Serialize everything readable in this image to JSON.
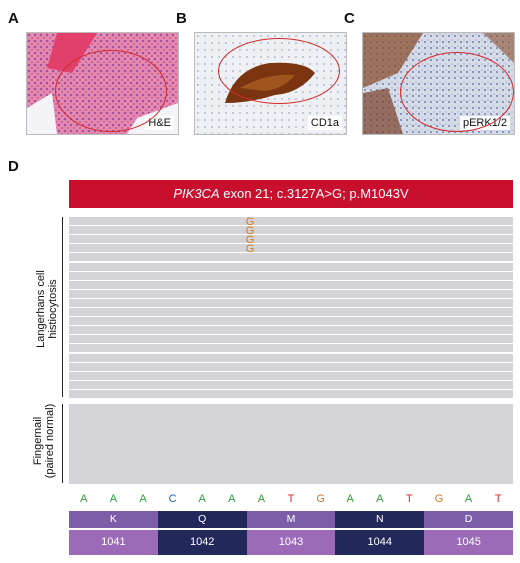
{
  "panels": {
    "a": {
      "letter": "A",
      "stain": "H&E"
    },
    "b": {
      "letter": "B",
      "stain": "CD1a"
    },
    "c": {
      "letter": "C",
      "stain": "pERK1/2"
    },
    "d": {
      "letter": "D"
    }
  },
  "variant": {
    "gene": "PIK3CA",
    "rest": " exon 21; c.3127A>G; p.M1043V"
  },
  "groups": {
    "lch_label_line1": "Langerhans cell",
    "lch_label_line2": "histiocytosis",
    "nail_label_line1": "Fingernail",
    "nail_label_line2": "(paired normal)"
  },
  "mutation_reads": [
    "G",
    "G",
    "G",
    "G"
  ],
  "lch_read_count": 20,
  "normal_read_count": 10,
  "sequence": [
    {
      "base": "A",
      "color": "#2e9e3a"
    },
    {
      "base": "A",
      "color": "#2e9e3a"
    },
    {
      "base": "A",
      "color": "#2e9e3a"
    },
    {
      "base": "C",
      "color": "#1f5fb0"
    },
    {
      "base": "A",
      "color": "#2e9e3a"
    },
    {
      "base": "A",
      "color": "#2e9e3a"
    },
    {
      "base": "A",
      "color": "#2e9e3a"
    },
    {
      "base": "T",
      "color": "#d42a2a"
    },
    {
      "base": "G",
      "color": "#c97a2a"
    },
    {
      "base": "A",
      "color": "#2e9e3a"
    },
    {
      "base": "A",
      "color": "#2e9e3a"
    },
    {
      "base": "T",
      "color": "#d42a2a"
    },
    {
      "base": "G",
      "color": "#c97a2a"
    },
    {
      "base": "A",
      "color": "#2e9e3a"
    },
    {
      "base": "T",
      "color": "#d42a2a"
    }
  ],
  "codons": [
    {
      "aa": "K",
      "pos": "1041",
      "color": "#7b5ea7",
      "idx_color": "#9b6bb8"
    },
    {
      "aa": "Q",
      "pos": "1042",
      "color": "#22285a",
      "idx_color": "#22285a"
    },
    {
      "aa": "M",
      "pos": "1043",
      "color": "#7b5ea7",
      "idx_color": "#9b6bb8"
    },
    {
      "aa": "N",
      "pos": "1044",
      "color": "#22285a",
      "idx_color": "#22285a"
    },
    {
      "aa": "D",
      "pos": "1045",
      "color": "#7b5ea7",
      "idx_color": "#9b6bb8"
    }
  ],
  "colors": {
    "banner": "#c8102e",
    "track": "#d4d4d8",
    "circle": "#d42a2a"
  }
}
